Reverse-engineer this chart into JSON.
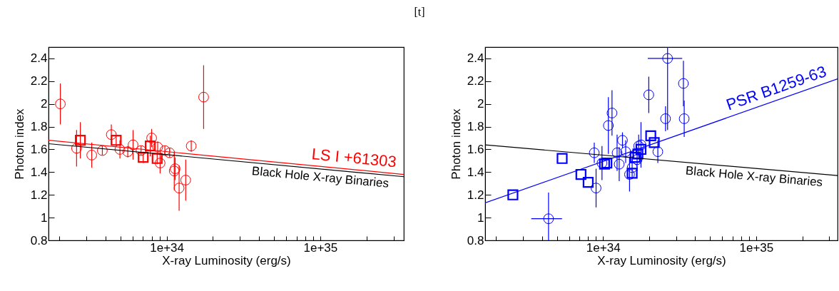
{
  "chart_data": [
    {
      "type": "scatter",
      "annotations": [
        "[t]"
      ],
      "xlabel": "X-ray Luminosity (erg/s)",
      "ylabel": "Photon index",
      "log": "x",
      "grid": false,
      "xlim": [
        1.7e+33,
        3.5e+35
      ],
      "ylim": [
        0.8,
        2.5
      ],
      "xticks": [
        {
          "value": 2e+33,
          "label": null
        },
        {
          "value": 3e+33,
          "label": null
        },
        {
          "value": 4e+33,
          "label": null
        },
        {
          "value": 5e+33,
          "label": null
        },
        {
          "value": 6e+33,
          "label": null
        },
        {
          "value": 7e+33,
          "label": null
        },
        {
          "value": 8e+33,
          "label": null
        },
        {
          "value": 9e+33,
          "label": null
        },
        {
          "value": 1e+34,
          "label": "1e+34"
        },
        {
          "value": 2e+34,
          "label": null
        },
        {
          "value": 3e+34,
          "label": null
        },
        {
          "value": 4e+34,
          "label": null
        },
        {
          "value": 5e+34,
          "label": null
        },
        {
          "value": 6e+34,
          "label": null
        },
        {
          "value": 7e+34,
          "label": null
        },
        {
          "value": 8e+34,
          "label": null
        },
        {
          "value": 9e+34,
          "label": null
        },
        {
          "value": 1e+35,
          "label": "1e+35"
        },
        {
          "value": 2e+35,
          "label": null
        },
        {
          "value": 3e+35,
          "label": null
        }
      ],
      "yticks": [
        0.8,
        1,
        1.2,
        1.4,
        1.6,
        1.8,
        2,
        2.2,
        2.4
      ],
      "series": [
        {
          "type": "scatter",
          "marker": "circle",
          "color": "#ff0000",
          "x": [
            2.03e+33,
            2.59e+33,
            3.25e+33,
            3.81e+33,
            4.36e+33,
            4.96e+33,
            5.58e+33,
            6.04e+33,
            6.81e+33,
            7.98e+33,
            8.74e+33,
            9.06e+33,
            9.73e+33,
            1.045e+34,
            1.12e+34,
            1.135e+34,
            1.205e+34,
            1.33e+34,
            1.445e+34,
            1.74e+34
          ],
          "values": [
            2.0,
            1.61,
            1.55,
            1.59,
            1.73,
            1.6,
            1.58,
            1.64,
            1.59,
            1.7,
            1.62,
            1.48,
            1.59,
            1.57,
            1.41,
            1.43,
            1.26,
            1.33,
            1.63,
            2.06
          ],
          "errors": [
            0.18,
            0.16,
            0.11,
            0.04,
            0.09,
            0.08,
            0.05,
            0.13,
            0.04,
            0.08,
            0.05,
            0.09,
            0.04,
            0.04,
            0.17,
            0.1,
            0.2,
            0.18,
            0.05,
            0.28
          ]
        },
        {
          "type": "scatter",
          "marker": "square",
          "color": "#ff0000",
          "x": [
            2.74e+33,
            4.69e+33,
            7.03e+33,
            7.82e+33,
            8.67e+33
          ],
          "values": [
            1.68,
            1.68,
            1.53,
            1.63,
            1.52
          ],
          "errors": [
            0.16,
            0.05,
            0.05,
            0.09,
            0.05
          ]
        },
        {
          "type": "line",
          "name": "LS I +61303",
          "color": "#ff0000",
          "x": [
            1.7e+33,
            3.5e+35
          ],
          "values": [
            1.68,
            1.38
          ]
        },
        {
          "type": "line",
          "name": "Black Hole X-ray Binaries",
          "color": "#000000",
          "x": [
            1.7e+33,
            3.5e+35
          ],
          "values": [
            1.65,
            1.36
          ]
        }
      ]
    },
    {
      "type": "scatter",
      "xlabel": "X-ray Luminosity (erg/s)",
      "ylabel": "Photon index",
      "log": "x",
      "grid": false,
      "xlim": [
        1.7e+33,
        3.4e+35
      ],
      "ylim": [
        0.8,
        2.5
      ],
      "xticks": [
        {
          "value": 2e+33,
          "label": null
        },
        {
          "value": 3e+33,
          "label": null
        },
        {
          "value": 4e+33,
          "label": null
        },
        {
          "value": 5e+33,
          "label": null
        },
        {
          "value": 6e+33,
          "label": null
        },
        {
          "value": 7e+33,
          "label": null
        },
        {
          "value": 8e+33,
          "label": null
        },
        {
          "value": 9e+33,
          "label": null
        },
        {
          "value": 1e+34,
          "label": "1e+34"
        },
        {
          "value": 2e+34,
          "label": null
        },
        {
          "value": 3e+34,
          "label": null
        },
        {
          "value": 4e+34,
          "label": null
        },
        {
          "value": 5e+34,
          "label": null
        },
        {
          "value": 6e+34,
          "label": null
        },
        {
          "value": 7e+34,
          "label": null
        },
        {
          "value": 8e+34,
          "label": null
        },
        {
          "value": 9e+34,
          "label": null
        },
        {
          "value": 1e+35,
          "label": "1e+35"
        },
        {
          "value": 2e+35,
          "label": null
        },
        {
          "value": 3e+35,
          "label": null
        }
      ],
      "yticks": [
        0.8,
        1,
        1.2,
        1.4,
        1.6,
        1.8,
        2,
        2.2,
        2.4
      ],
      "series": [
        {
          "type": "scatter",
          "marker": "circle",
          "color": "#0000ff",
          "x": [
            4.41e+33,
            8.77e+33,
            9.01e+33,
            9.85e+33,
            1.084e+34,
            1.145e+34,
            1.236e+34,
            1.276e+34,
            1.34e+34,
            1.406e+34,
            1.49e+34,
            1.55e+34,
            1.67e+34,
            1.71e+34,
            1.77e+34,
            1.99e+34,
            2.28e+34,
            2.56e+34,
            2.64e+34,
            3.35e+34,
            3.39e+34
          ],
          "values": [
            0.99,
            1.57,
            1.26,
            1.48,
            1.81,
            1.92,
            1.57,
            1.47,
            1.68,
            1.58,
            1.38,
            1.44,
            1.51,
            1.63,
            1.64,
            2.08,
            1.58,
            1.87,
            2.4,
            2.18,
            1.87
          ],
          "errors": [
            [
              0.8,
              1.22
            ],
            0.09,
            0.17,
            0.15,
            0.25,
            0.2,
            0.16,
            0.15,
            0.07,
            0.1,
            0.15,
            0.1,
            0.1,
            0.1,
            0.2,
            0.16,
            0.1,
            0.11,
            [
              1.77,
              2.5
            ],
            0.2,
            0.16
          ],
          "xerrors": [
            [
              3.4e+33,
              5.4e+33
            ],
            null,
            null,
            null,
            null,
            null,
            null,
            null,
            null,
            null,
            null,
            null,
            null,
            null,
            null,
            null,
            null,
            null,
            [
              1.96e+34,
              3.29e+34
            ],
            null,
            null
          ]
        },
        {
          "type": "scatter",
          "marker": "square",
          "color": "#0000ff",
          "x": [
            2.58e+33,
            5.41e+33,
            7.18e+33,
            8e+33,
            1.023e+34,
            1.06e+34,
            1.55e+34,
            1.62e+34,
            1.69e+34,
            1.77e+34,
            2.05e+34,
            2.16e+34
          ],
          "values": [
            1.2,
            1.52,
            1.38,
            1.31,
            1.47,
            1.48,
            1.39,
            1.53,
            1.56,
            1.6,
            1.72,
            1.66
          ]
        },
        {
          "type": "line",
          "name": "Black Hole X-ray Binaries",
          "color": "#000000",
          "x": [
            1.7e+33,
            3.4e+35
          ],
          "values": [
            1.64,
            1.37
          ]
        },
        {
          "type": "line",
          "name": "PSR B1259-63",
          "color": "#0000ff",
          "x": [
            1.7e+33,
            3.4e+35
          ],
          "values": [
            1.13,
            2.22
          ]
        }
      ]
    }
  ]
}
